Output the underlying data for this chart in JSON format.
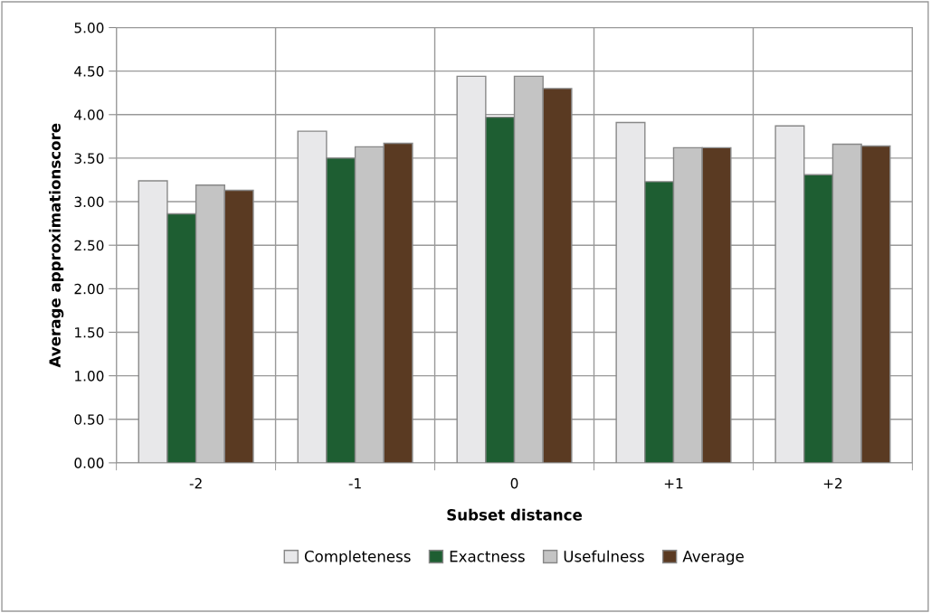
{
  "chart_data": {
    "type": "bar",
    "xlabel": "Subset distance",
    "ylabel": "Average approximationscore",
    "categories": [
      "-2",
      "-1",
      "0",
      "+1",
      "+2"
    ],
    "series": [
      {
        "name": "Completeness",
        "color": "#e8e8ea",
        "values": [
          3.24,
          3.81,
          4.44,
          3.91,
          3.87
        ]
      },
      {
        "name": "Exactness",
        "color": "#1e5e32",
        "values": [
          2.86,
          3.5,
          3.97,
          3.23,
          3.31
        ]
      },
      {
        "name": "Usefulness",
        "color": "#c4c4c4",
        "values": [
          3.19,
          3.63,
          4.44,
          3.62,
          3.66
        ]
      },
      {
        "name": "Average",
        "color": "#5a3a22",
        "values": [
          3.13,
          3.67,
          4.3,
          3.62,
          3.64
        ]
      }
    ],
    "ylim": [
      0,
      5
    ],
    "yticks": [
      {
        "value": 0,
        "label": "0.00"
      },
      {
        "value": 0.5,
        "label": "0.50"
      },
      {
        "value": 1,
        "label": "1.00"
      },
      {
        "value": 1.5,
        "label": "1.50"
      },
      {
        "value": 2,
        "label": "2.00"
      },
      {
        "value": 2.5,
        "label": "2.50"
      },
      {
        "value": 3,
        "label": "3.00"
      },
      {
        "value": 3.5,
        "label": "3.50"
      },
      {
        "value": 4,
        "label": "4.00"
      },
      {
        "value": 4.5,
        "label": "4.50"
      },
      {
        "value": 5,
        "label": "5.00"
      }
    ],
    "grid": true,
    "legend": "bottom"
  }
}
